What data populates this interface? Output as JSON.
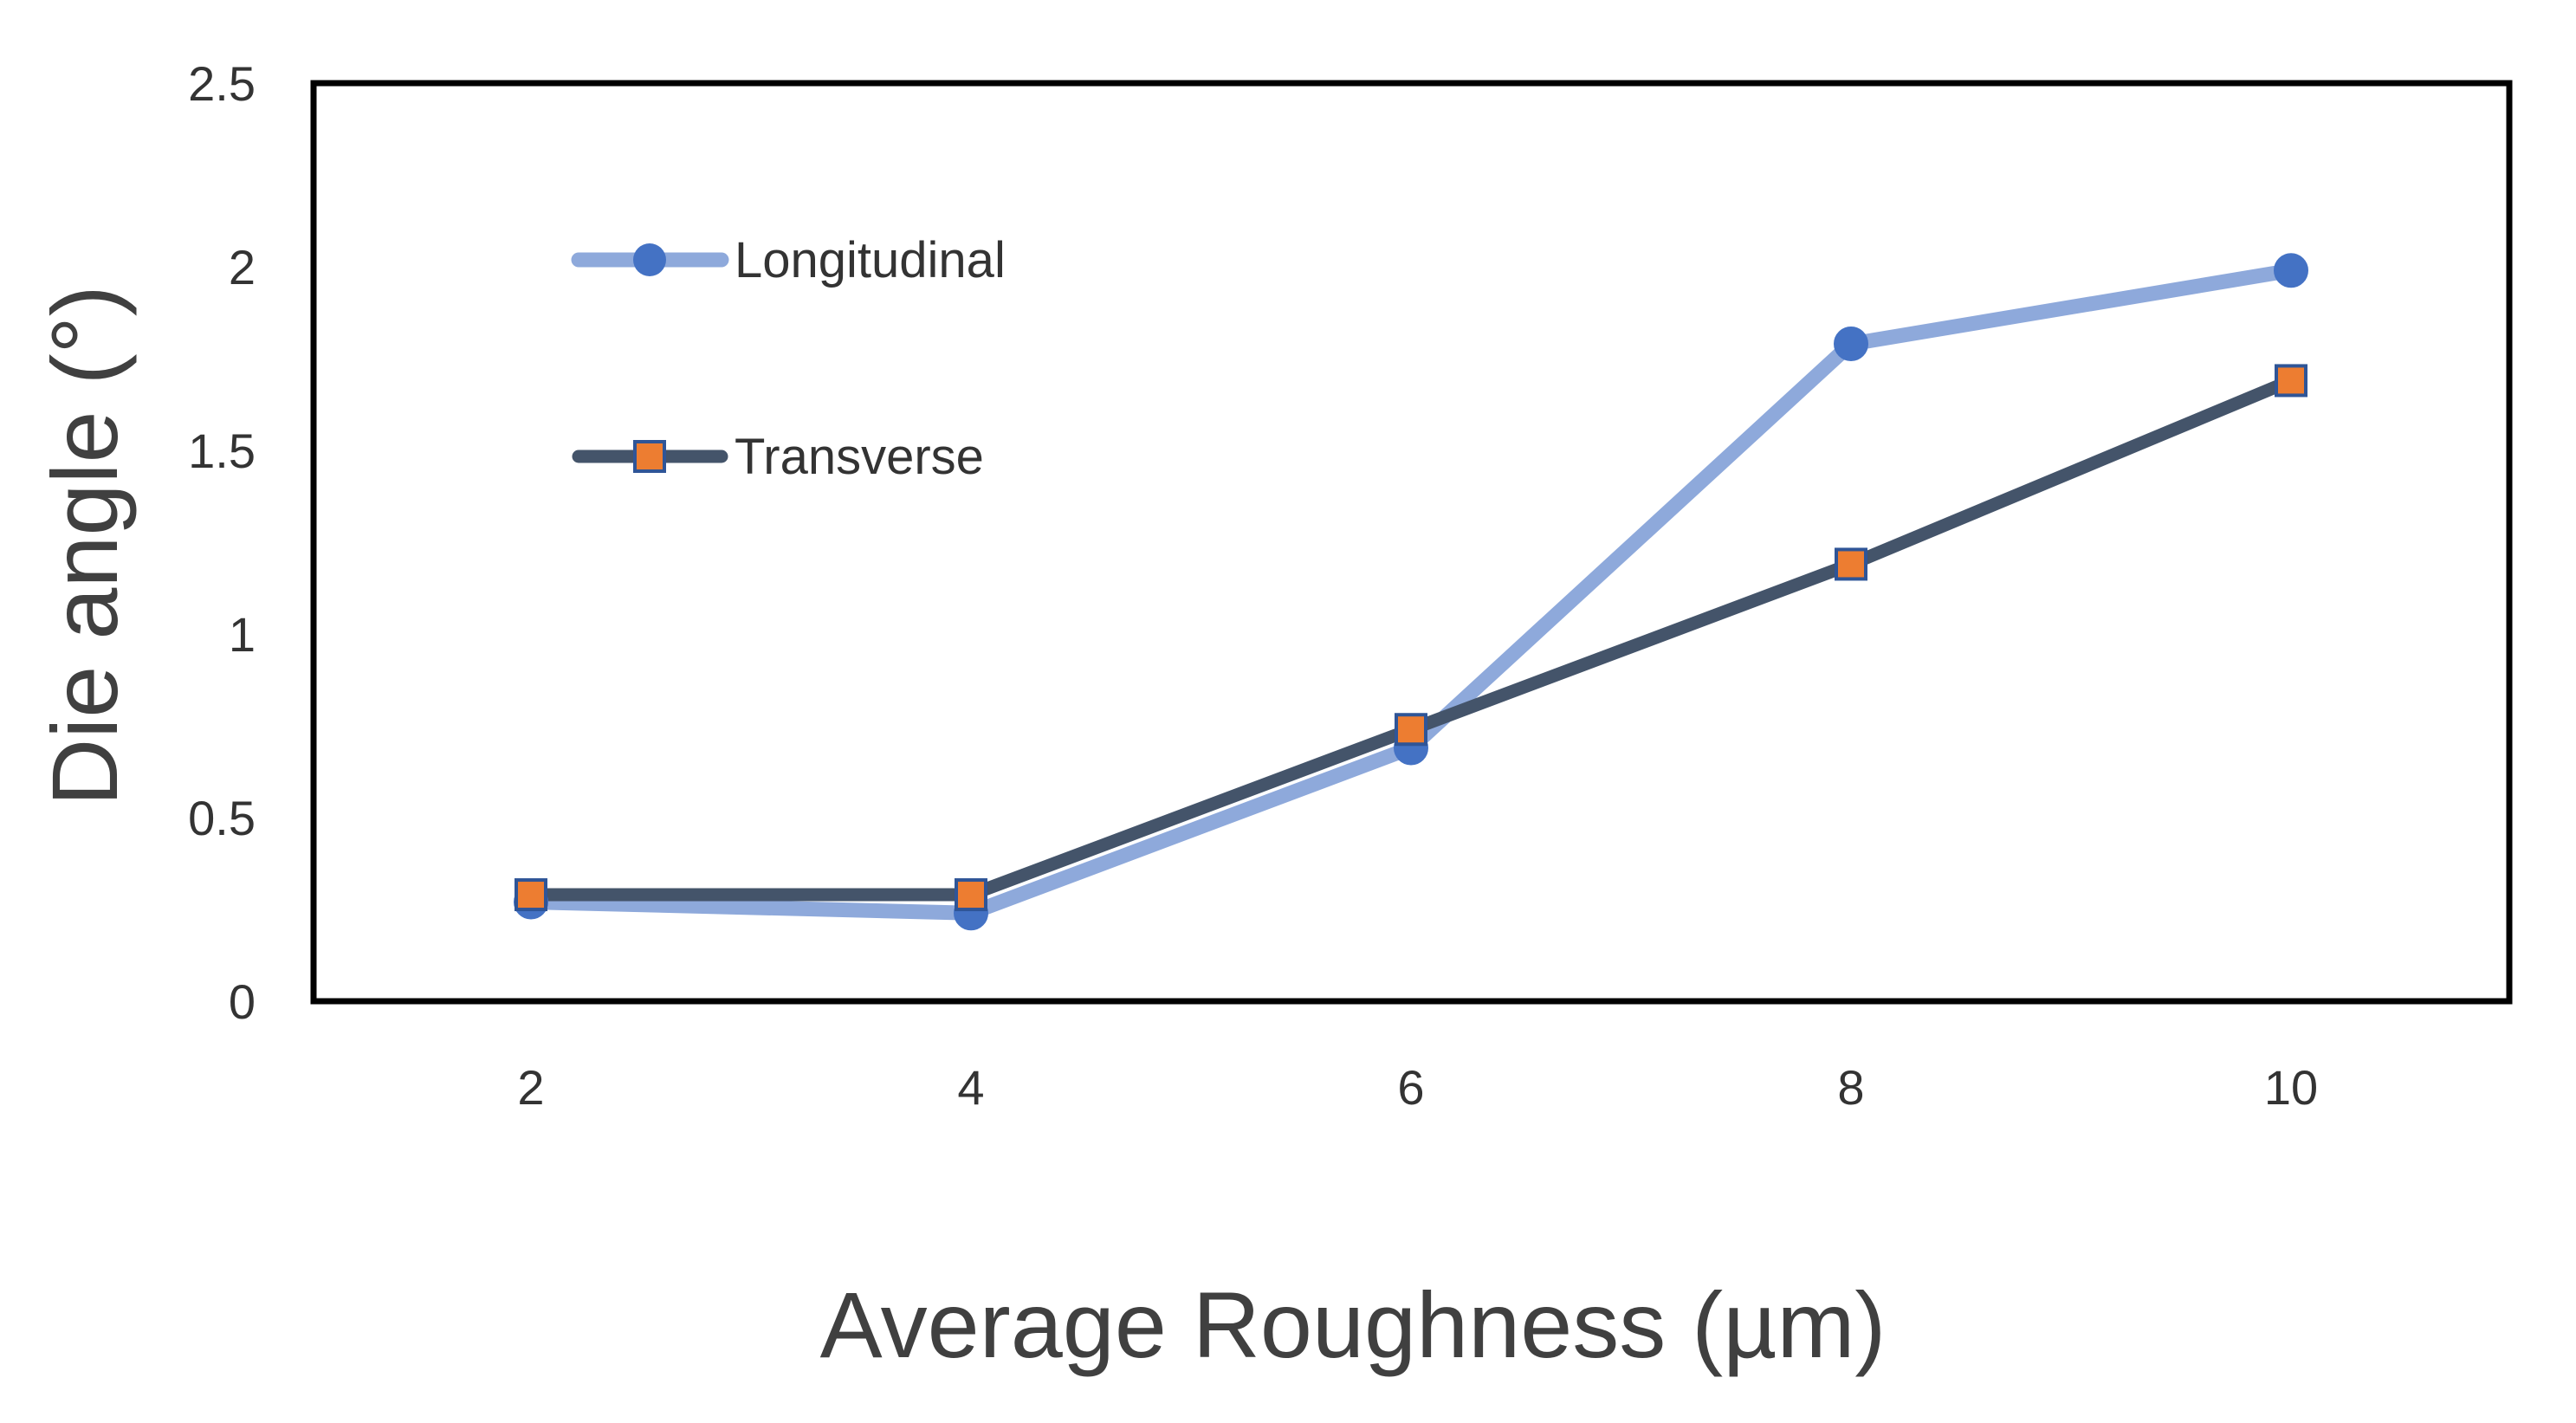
{
  "chart_data": {
    "type": "line",
    "title": "",
    "xlabel": "Average Roughness (µm)",
    "ylabel": "Die angle (°)",
    "x": [
      2,
      4,
      6,
      8,
      10
    ],
    "x_tick_labels": [
      "2",
      "4",
      "6",
      "8",
      "10"
    ],
    "ylim": [
      0,
      2.5
    ],
    "y_ticks": [
      0,
      0.5,
      1,
      1.5,
      2,
      2.5
    ],
    "y_tick_labels": [
      "0",
      "0.5",
      "1",
      "1.5",
      "2",
      "2.5"
    ],
    "grid": false,
    "legend_position": "top-left",
    "series": [
      {
        "name": "Longitudinal",
        "values": [
          0.27,
          0.24,
          0.69,
          1.79,
          1.99
        ],
        "line_color": "#8EA9DB",
        "marker": "circle",
        "marker_color": "#4472C4"
      },
      {
        "name": "Transverse",
        "values": [
          0.29,
          0.29,
          0.74,
          1.19,
          1.69
        ],
        "line_color": "#44546A",
        "marker": "square",
        "marker_color": "#ED7D31"
      }
    ]
  }
}
